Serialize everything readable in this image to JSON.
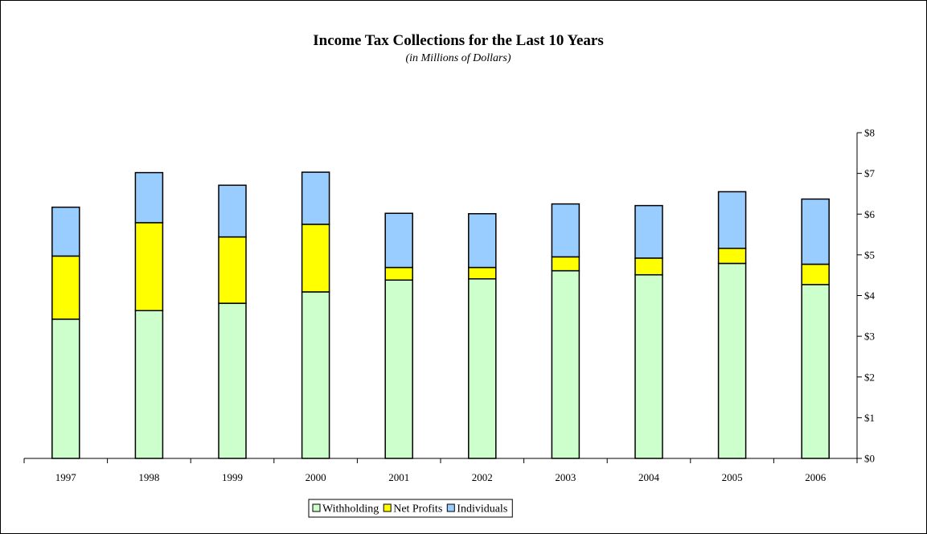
{
  "chart_data": {
    "type": "bar",
    "stacked": true,
    "title": "Income Tax Collections for the Last 10 Years",
    "subtitle": "(in Millions of Dollars)",
    "xlabel": "",
    "ylabel": "",
    "y_axis_side": "right",
    "ylim": [
      0,
      8
    ],
    "y_ticks": [
      0,
      1,
      2,
      3,
      4,
      5,
      6,
      7,
      8
    ],
    "y_tick_labels": [
      "$0",
      "$1",
      "$2",
      "$3",
      "$4",
      "$5",
      "$6",
      "$7",
      "$8"
    ],
    "grid": false,
    "legend_position": "bottom",
    "categories": [
      "1997",
      "1998",
      "1999",
      "2000",
      "2001",
      "2002",
      "2003",
      "2004",
      "2005",
      "2006"
    ],
    "series": [
      {
        "name": "Withholding",
        "color": "#ccffcc",
        "values": [
          3.42,
          3.63,
          3.81,
          4.09,
          4.38,
          4.41,
          4.61,
          4.51,
          4.79,
          4.27
        ]
      },
      {
        "name": "Net Profits",
        "color": "#ffff00",
        "values": [
          1.55,
          2.16,
          1.63,
          1.66,
          0.31,
          0.28,
          0.34,
          0.41,
          0.37,
          0.5
        ]
      },
      {
        "name": "Individuals",
        "color": "#99ccff",
        "values": [
          1.2,
          1.23,
          1.27,
          1.28,
          1.33,
          1.32,
          1.3,
          1.29,
          1.39,
          1.6
        ]
      }
    ]
  }
}
